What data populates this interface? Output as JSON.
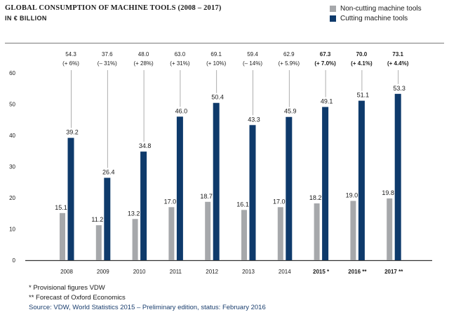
{
  "title": "GLOBAL CONSUMPTION OF MACHINE TOOLS (2008 – 2017)",
  "subtitle": "IN € BILLION",
  "legend": [
    {
      "label": "Non-cutting machine tools",
      "color": "#a6a8ab"
    },
    {
      "label": "Cutting machine tools",
      "color": "#0e3a6b"
    }
  ],
  "footnotes": {
    "provisional": "*  Provisional figures VDW",
    "forecast": "**  Forecast of Oxford Economics",
    "source": "Source: VDW, World Statistics 2015 – Preliminary edition, status: February 2016"
  },
  "chart_data": {
    "type": "bar",
    "categories": [
      "2008",
      "2009",
      "2010",
      "2011",
      "2012",
      "2013",
      "2014",
      "2015 *",
      "2016 **",
      "2017 **"
    ],
    "bold_categories": [
      "2015 *",
      "2016 **",
      "2017 **"
    ],
    "series": [
      {
        "name": "Non-cutting machine tools",
        "color": "#a6a8ab",
        "values": [
          15.1,
          11.2,
          13.2,
          17.0,
          18.7,
          16.1,
          17.0,
          18.2,
          19.0,
          19.8
        ]
      },
      {
        "name": "Cutting machine tools",
        "color": "#0e3a6b",
        "values": [
          39.2,
          26.4,
          34.8,
          46.0,
          50.4,
          43.3,
          45.9,
          49.1,
          51.1,
          53.3
        ]
      }
    ],
    "totals": [
      "54.3",
      "37.6",
      "48.0",
      "63.0",
      "69.1",
      "59.4",
      "62.9",
      "67.3",
      "70.0",
      "73.1"
    ],
    "changes": [
      "(+ 6%)",
      "(– 31%)",
      "(+ 28%)",
      "(+ 31%)",
      "(+ 10%)",
      "(– 14%)",
      "(+ 5.9%)",
      "(+ 7.0%)",
      "(+ 4.1%)",
      "(+ 4.4%)"
    ],
    "yticks": [
      0,
      10,
      20,
      30,
      40,
      50,
      60
    ],
    "ylim": [
      0,
      60
    ],
    "grid": false
  }
}
